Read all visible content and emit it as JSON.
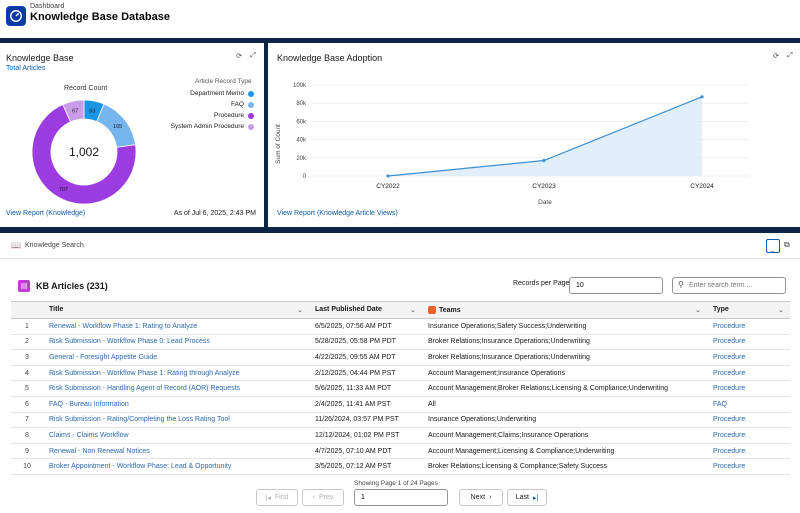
{
  "header": {
    "breadcrumb": "Dashboard",
    "title": "Knowledge Base Database"
  },
  "kb_card": {
    "title": "Knowledge Base",
    "subtitle": "Total Articles",
    "record_count_label": "Record Count",
    "legend_title": "Article Record Type",
    "total": "1,002",
    "view_report": "View Report (Knowledge)",
    "as_of": "As of Jul 6, 2025, 2:43 PM",
    "legend": [
      {
        "label": "Department Memo",
        "color": "#1b96e2"
      },
      {
        "label": "FAQ",
        "color": "#76b5ee"
      },
      {
        "label": "Procedure",
        "color": "#9b3be0"
      },
      {
        "label": "System Admin Procedure",
        "color": "#c89ce8"
      }
    ]
  },
  "chart_data": [
    {
      "type": "pie",
      "title": "Knowledge Base",
      "subtitle": "Total Articles",
      "categories": [
        "Department Memo",
        "FAQ",
        "Procedure",
        "System Admin Procedure"
      ],
      "values": [
        63,
        165,
        707,
        67
      ],
      "colors": [
        "#1b96e2",
        "#76b5ee",
        "#9b3be0",
        "#c89ce8"
      ],
      "total": 1002,
      "legend": "right"
    },
    {
      "type": "area",
      "title": "Knowledge Base Adoption",
      "xlabel": "Date",
      "ylabel": "Sum of Count",
      "categories": [
        "CY2022",
        "CY2023",
        "CY2024"
      ],
      "values": [
        0,
        17000,
        87000
      ],
      "ylim": [
        0,
        100000
      ],
      "yticks": [
        "0",
        "20k",
        "40k",
        "60k",
        "80k",
        "100k"
      ],
      "grid": true
    }
  ],
  "adopt_card": {
    "title": "Knowledge Base Adoption",
    "view_report": "View Report (Knowledge Article Views)",
    "xlabel": "Date",
    "ylabel": "Sum of Count",
    "yticks": [
      "0",
      "20k",
      "40k",
      "60k",
      "80k",
      "100k"
    ],
    "xticks": [
      "CY2022",
      "CY2023",
      "CY2024"
    ]
  },
  "search_card": {
    "title": "Knowledge Search",
    "kb_title": "KB Articles (231)",
    "records_per_page_label": "Records per Page",
    "records_per_page": "10",
    "search_placeholder": "Enter search term ...",
    "columns": [
      "Title",
      "Last Published Date",
      "Teams",
      "Type"
    ],
    "rows": [
      {
        "n": "1",
        "title": "Renewal - Workflow Phase 1: Rating to Analyze",
        "date": "6/5/2025, 07:56 AM PDT",
        "teams": "Insurance Operations;Safety Success;Underwriting",
        "type": "Procedure"
      },
      {
        "n": "2",
        "title": "Risk Submission - Workflow Phase 0: Lead Process",
        "date": "5/28/2025, 05:58 PM PDT",
        "teams": "Broker Relations;Insurance Operations;Underwriting",
        "type": "Procedure"
      },
      {
        "n": "3",
        "title": "General - Foresight Appetite Guide",
        "date": "4/22/2025, 09:55 AM PDT",
        "teams": "Broker Relations;Insurance Operations;Underwriting",
        "type": "Procedure"
      },
      {
        "n": "4",
        "title": "Risk Submission - Workflow Phase 1: Rating through Analyze",
        "date": "2/12/2025, 04:44 PM PST",
        "teams": "Account Management;Insurance Operations",
        "type": "Procedure"
      },
      {
        "n": "5",
        "title": "Risk Submission - Handling Agent of Record (AOR) Requests",
        "date": "5/6/2025, 11:33 AM PDT",
        "teams": "Account Management;Broker Relations;Licensing & Compliance;Underwriting",
        "type": "Procedure"
      },
      {
        "n": "6",
        "title": "FAQ - Bureau Information",
        "date": "2/4/2025, 11:41 AM PST",
        "teams": "All",
        "type": "FAQ"
      },
      {
        "n": "7",
        "title": "Risk Submission - Rating/Completing the Loss Rating Tool",
        "date": "11/26/2024, 03:57 PM PST",
        "teams": "Insurance Operations;Underwriting",
        "type": "Procedure"
      },
      {
        "n": "8",
        "title": "Claims - Claims Workflow",
        "date": "12/12/2024, 01:02 PM PST",
        "teams": "Account Management;Claims;Insurance Operations",
        "type": "Procedure"
      },
      {
        "n": "9",
        "title": "Renewal - Non Renewal Notices",
        "date": "4/7/2025, 07:10 AM PDT",
        "teams": "Account Management;Licensing & Compliance;Underwriting",
        "type": "Procedure"
      },
      {
        "n": "10",
        "title": "Broker Appointment - Workflow Phase: Lead & Opportunity",
        "date": "3/5/2025, 07:12 AM PST",
        "teams": "Broker Relations;Licensing & Compliance;Safety Success",
        "type": "Procedure"
      }
    ],
    "pagination": {
      "first": "First",
      "prev": "Prev",
      "next": "Next",
      "last": "Last",
      "showing": "Showing Page 1 of 24 Pages",
      "page": "1"
    }
  }
}
